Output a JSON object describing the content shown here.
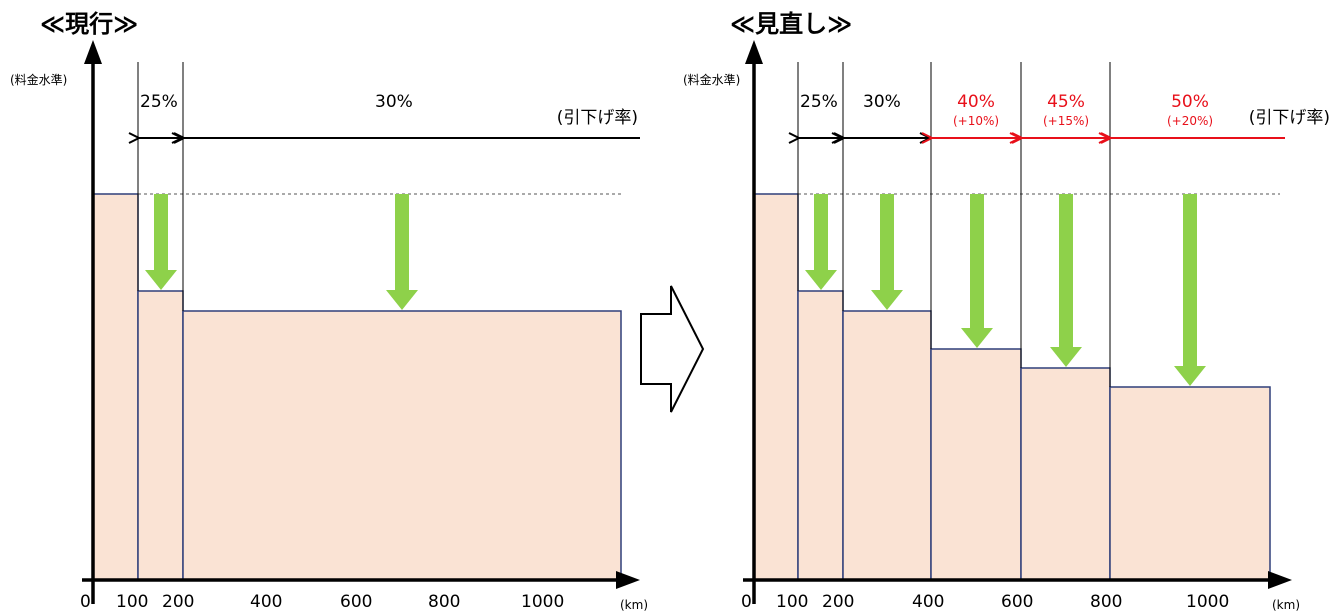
{
  "left": {
    "title": "≪現行≫",
    "y_label": "(料金水準)",
    "x_unit": "(km)",
    "origin": "0",
    "x_ticks": [
      "100",
      "200",
      "400",
      "600",
      "800",
      "1000"
    ],
    "rate_legend": "(引下げ率)",
    "rates": [
      {
        "label": "25%",
        "delta": ""
      },
      {
        "label": "30%",
        "delta": ""
      }
    ]
  },
  "right": {
    "title": "≪見直し≫",
    "y_label": "(料金水準)",
    "x_unit": "(km)",
    "origin": "0",
    "x_ticks": [
      "100",
      "200",
      "400",
      "600",
      "800",
      "1000"
    ],
    "rate_legend": "(引下げ率)",
    "rates": [
      {
        "label": "25%",
        "delta": ""
      },
      {
        "label": "30%",
        "delta": ""
      },
      {
        "label": "40%",
        "delta": "(+10%)"
      },
      {
        "label": "45%",
        "delta": "(+15%)"
      },
      {
        "label": "50%",
        "delta": "(+20%)"
      }
    ]
  },
  "colors": {
    "bar_fill": "#fae3d4",
    "bar_stroke": "#2f3f7a",
    "down_arrow": "#8ed14a",
    "highlight": "#e8101a",
    "axis": "#000000"
  },
  "icons": {
    "transition": "outline-right-arrow-icon",
    "reduction": "green-down-arrow-icon"
  }
}
